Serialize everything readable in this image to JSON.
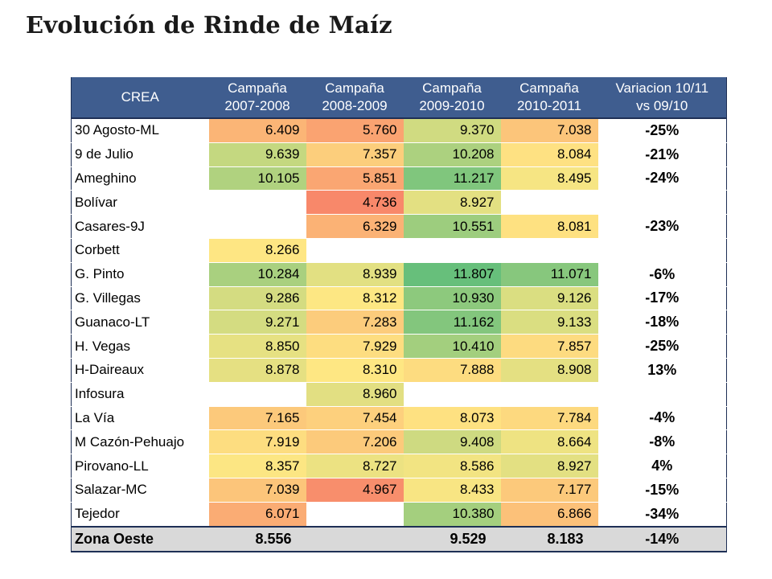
{
  "title": "Evolución de Rinde de Maíz",
  "table": {
    "headers": [
      [
        "CREA",
        ""
      ],
      [
        "Campaña",
        "2007-2008"
      ],
      [
        "Campaña",
        "2008-2009"
      ],
      [
        "Campaña",
        "2009-2010"
      ],
      [
        "Campaña",
        "2010-2011"
      ],
      [
        "Variacion 10/11",
        "vs 09/10"
      ]
    ],
    "rows": [
      {
        "name": "30 Agosto-ML",
        "values": [
          "6.409",
          "5.760",
          "9.370",
          "7.038"
        ],
        "variation": "-25%"
      },
      {
        "name": "9 de Julio",
        "values": [
          "9.639",
          "7.357",
          "10.208",
          "8.084"
        ],
        "variation": "-21%"
      },
      {
        "name": "Ameghino",
        "values": [
          "10.105",
          "5.851",
          "11.217",
          "8.495"
        ],
        "variation": "-24%"
      },
      {
        "name": "Bolívar",
        "values": [
          "",
          "4.736",
          "8.927",
          ""
        ],
        "variation": ""
      },
      {
        "name": "Casares-9J",
        "values": [
          "",
          "6.329",
          "10.551",
          "8.081"
        ],
        "variation": "-23%"
      },
      {
        "name": "Corbett",
        "values": [
          "8.266",
          "",
          "",
          ""
        ],
        "variation": ""
      },
      {
        "name": "G. Pinto",
        "values": [
          "10.284",
          "8.939",
          "11.807",
          "11.071"
        ],
        "variation": "-6%"
      },
      {
        "name": "G. Villegas",
        "values": [
          "9.286",
          "8.312",
          "10.930",
          "9.126"
        ],
        "variation": "-17%"
      },
      {
        "name": "Guanaco-LT",
        "values": [
          "9.271",
          "7.283",
          "11.162",
          "9.133"
        ],
        "variation": "-18%"
      },
      {
        "name": "H. Vegas",
        "values": [
          "8.850",
          "7.929",
          "10.410",
          "7.857"
        ],
        "variation": "-25%"
      },
      {
        "name": "H-Daireaux",
        "values": [
          "8.878",
          "8.310",
          "7.888",
          "8.908"
        ],
        "variation": "13%"
      },
      {
        "name": "Infosura",
        "values": [
          "",
          "8.960",
          "",
          ""
        ],
        "variation": ""
      },
      {
        "name": "La Vía",
        "values": [
          "7.165",
          "7.454",
          "8.073",
          "7.784"
        ],
        "variation": "-4%"
      },
      {
        "name": "M Cazón-Pehuajo",
        "values": [
          "7.919",
          "7.206",
          "9.408",
          "8.664"
        ],
        "variation": "-8%"
      },
      {
        "name": "Pirovano-LL",
        "values": [
          "8.357",
          "8.727",
          "8.586",
          "8.927"
        ],
        "variation": "4%"
      },
      {
        "name": "Salazar-MC",
        "values": [
          "7.039",
          "4.967",
          "8.433",
          "7.177"
        ],
        "variation": "-15%"
      },
      {
        "name": "Tejedor",
        "values": [
          "6.071",
          "",
          "10.380",
          "6.866"
        ],
        "variation": "-34%"
      }
    ],
    "total": {
      "name": "Zona Oeste",
      "values": [
        "8.556",
        "",
        "9.529",
        "8.183"
      ],
      "variation": "-14%"
    }
  },
  "colors": {
    "header_bg": "#3f5d8f",
    "header_text": "#ffffff",
    "total_bg": "#d9d9d9",
    "scale_low": "#f8876a",
    "scale_mid": "#fee783",
    "scale_high": "#63be7b"
  }
}
